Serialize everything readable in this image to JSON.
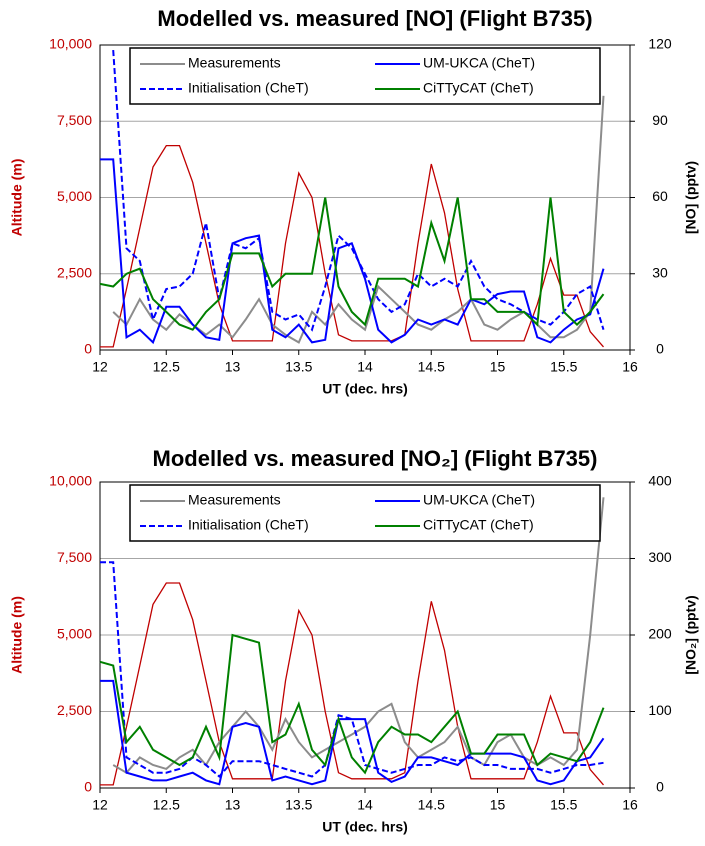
{
  "chart_data": [
    {
      "type": "line",
      "title": "Modelled vs. measured [NO] (Flight B735)",
      "x_label": "UT (dec. hrs)",
      "y_label": "Altitude (m)",
      "y2_label": "[NO] (pptv)",
      "xlim": [
        12,
        16
      ],
      "xticks": [
        12,
        12.5,
        13,
        13.5,
        14,
        14.5,
        15,
        15.5,
        16
      ],
      "ylim": [
        0,
        10000
      ],
      "yticks": [
        0,
        {
          "value": 2500,
          "label": "2,500"
        },
        {
          "value": 5000,
          "label": "5,000"
        },
        {
          "value": 7500,
          "label": "7,500"
        },
        {
          "value": 10000,
          "label": "10,000"
        }
      ],
      "y2lim": [
        0,
        120
      ],
      "y2ticks": [
        0,
        30,
        60,
        90,
        120
      ],
      "grid": true,
      "legend": "top",
      "y_color": "#c00000",
      "x": [
        12,
        12.1,
        12.2,
        12.3,
        12.4,
        12.5,
        12.6,
        12.7,
        12.8,
        12.9,
        13,
        13.1,
        13.2,
        13.3,
        13.4,
        13.5,
        13.6,
        13.7,
        13.8,
        13.9,
        14,
        14.1,
        14.2,
        14.3,
        14.4,
        14.5,
        14.6,
        14.7,
        14.8,
        14.9,
        15,
        15.1,
        15.2,
        15.3,
        15.4,
        15.5,
        15.6,
        15.7,
        15.8
      ],
      "series": [
        {
          "name": "Measurements",
          "color": "#8c8c8c",
          "axis": "y2",
          "values": [
            null,
            15,
            10,
            20,
            12,
            8,
            14,
            10,
            6,
            10,
            5,
            12,
            20,
            10,
            6,
            3,
            15,
            10,
            18,
            12,
            8,
            25,
            20,
            15,
            10,
            8,
            12,
            15,
            20,
            10,
            8,
            12,
            15,
            10,
            5,
            5,
            8,
            15,
            100
          ]
        },
        {
          "name": "UM-UKCA (CheT)",
          "color": "#0000ff",
          "axis": "y2",
          "values": [
            75,
            75,
            5,
            8,
            3,
            17,
            17,
            10,
            5,
            4,
            42,
            44,
            45,
            8,
            5,
            10,
            3,
            4,
            40,
            42,
            28,
            8,
            3,
            6,
            12,
            10,
            12,
            10,
            20,
            18,
            22,
            23,
            23,
            5,
            3,
            8,
            12,
            14,
            32
          ]
        },
        {
          "name": "Initialisation (CheT)",
          "color": "#0000ff",
          "axis": "y2",
          "dashed": true,
          "values": [
            null,
            118,
            40,
            35,
            12,
            24,
            25,
            30,
            50,
            20,
            42,
            40,
            44,
            15,
            12,
            14,
            8,
            25,
            45,
            40,
            30,
            20,
            15,
            18,
            30,
            25,
            28,
            25,
            35,
            25,
            20,
            18,
            15,
            12,
            10,
            15,
            22,
            25,
            8
          ]
        },
        {
          "name": "CiTTyCAT (CheT)",
          "color": "#008000",
          "axis": "y2",
          "values": [
            26,
            25,
            30,
            32,
            20,
            15,
            10,
            8,
            15,
            20,
            38,
            38,
            38,
            25,
            30,
            30,
            30,
            60,
            25,
            15,
            10,
            28,
            28,
            28,
            25,
            50,
            35,
            60,
            20,
            20,
            15,
            15,
            15,
            10,
            60,
            15,
            10,
            15,
            22
          ]
        },
        {
          "color": "#c00000",
          "axis": "y",
          "values": [
            100,
            100,
            2000,
            4000,
            6000,
            6700,
            6700,
            5500,
            3500,
            1500,
            300,
            300,
            300,
            300,
            3500,
            5800,
            5000,
            2500,
            500,
            300,
            300,
            300,
            300,
            500,
            3500,
            6100,
            4500,
            2000,
            300,
            300,
            300,
            300,
            300,
            1500,
            3000,
            1800,
            1800,
            600,
            100
          ]
        }
      ]
    },
    {
      "type": "line",
      "title": "Modelled vs. measured [NO₂] (Flight B735)",
      "x_label": "UT (dec. hrs)",
      "y_label": "Altitude (m)",
      "y2_label": "[NO₂] (pptv)",
      "xlim": [
        12,
        16
      ],
      "xticks": [
        12,
        12.5,
        13,
        13.5,
        14,
        14.5,
        15,
        15.5,
        16
      ],
      "ylim": [
        0,
        10000
      ],
      "yticks": [
        0,
        {
          "value": 2500,
          "label": "2,500"
        },
        {
          "value": 5000,
          "label": "5,000"
        },
        {
          "value": 7500,
          "label": "7,500"
        },
        {
          "value": 10000,
          "label": "10,000"
        }
      ],
      "y2lim": [
        0,
        400
      ],
      "y2ticks": [
        0,
        100,
        200,
        300,
        400
      ],
      "grid": true,
      "legend": "top",
      "y_color": "#c00000",
      "x": [
        12,
        12.1,
        12.2,
        12.3,
        12.4,
        12.5,
        12.6,
        12.7,
        12.8,
        12.9,
        13,
        13.1,
        13.2,
        13.3,
        13.4,
        13.5,
        13.6,
        13.7,
        13.8,
        13.9,
        14,
        14.1,
        14.2,
        14.3,
        14.4,
        14.5,
        14.6,
        14.7,
        14.8,
        14.9,
        15,
        15.1,
        15.2,
        15.3,
        15.4,
        15.5,
        15.6,
        15.7,
        15.8
      ],
      "series": [
        {
          "name": "Measurements",
          "color": "#8c8c8c",
          "axis": "y2",
          "values": [
            null,
            30,
            20,
            40,
            30,
            25,
            40,
            50,
            30,
            60,
            80,
            100,
            80,
            50,
            90,
            60,
            40,
            50,
            60,
            70,
            80,
            100,
            110,
            60,
            40,
            50,
            60,
            80,
            40,
            30,
            60,
            70,
            40,
            30,
            40,
            30,
            50,
            200,
            380
          ]
        },
        {
          "name": "UM-UKCA (CheT)",
          "color": "#0000ff",
          "axis": "y2",
          "values": [
            140,
            140,
            20,
            15,
            10,
            10,
            15,
            20,
            10,
            5,
            80,
            85,
            80,
            10,
            15,
            10,
            5,
            10,
            90,
            90,
            90,
            20,
            8,
            15,
            40,
            40,
            35,
            30,
            45,
            45,
            45,
            45,
            40,
            10,
            5,
            10,
            35,
            40,
            65
          ]
        },
        {
          "name": "Initialisation (CheT)",
          "color": "#0000ff",
          "axis": "y2",
          "dashed": true,
          "values": [
            295,
            295,
            40,
            30,
            20,
            20,
            25,
            40,
            30,
            15,
            35,
            35,
            35,
            30,
            25,
            20,
            15,
            30,
            95,
            90,
            30,
            25,
            20,
            25,
            30,
            30,
            40,
            35,
            40,
            30,
            30,
            25,
            25,
            25,
            20,
            25,
            30,
            30,
            33
          ]
        },
        {
          "name": "CiTTyCAT (CheT)",
          "color": "#008000",
          "axis": "y2",
          "values": [
            165,
            160,
            60,
            80,
            50,
            40,
            30,
            40,
            80,
            40,
            200,
            195,
            190,
            60,
            70,
            110,
            50,
            30,
            90,
            40,
            20,
            60,
            80,
            70,
            70,
            60,
            80,
            100,
            45,
            45,
            70,
            70,
            70,
            30,
            45,
            40,
            35,
            60,
            105
          ]
        },
        {
          "color": "#c00000",
          "axis": "y",
          "values": [
            100,
            100,
            2000,
            4000,
            6000,
            6700,
            6700,
            5500,
            3500,
            1500,
            300,
            300,
            300,
            300,
            3500,
            5800,
            5000,
            2500,
            500,
            300,
            300,
            300,
            300,
            500,
            3500,
            6100,
            4500,
            2000,
            300,
            300,
            300,
            300,
            300,
            1500,
            3000,
            1800,
            1800,
            600,
            100
          ]
        }
      ]
    }
  ]
}
